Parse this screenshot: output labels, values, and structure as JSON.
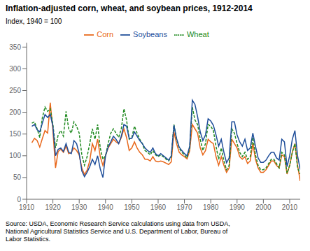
{
  "chart_data": {
    "type": "line",
    "title": "Inflation-adjusted corn, wheat, and soybean prices, 1912-2014",
    "ylabel": "Index, 1940 = 100",
    "annotations": [
      "Source: USDA, Economic Research Service calculations using data from USDA,\nNational Agricultural Statistics Service and U.S. Department of Labor, Bureau of\nLabor Statistics."
    ],
    "x": [
      1912,
      1913,
      1914,
      1915,
      1916,
      1917,
      1918,
      1919,
      1920,
      1921,
      1922,
      1923,
      1924,
      1925,
      1926,
      1927,
      1928,
      1929,
      1930,
      1931,
      1932,
      1933,
      1934,
      1935,
      1936,
      1937,
      1938,
      1939,
      1940,
      1941,
      1942,
      1943,
      1944,
      1945,
      1946,
      1947,
      1948,
      1949,
      1950,
      1951,
      1952,
      1953,
      1954,
      1955,
      1956,
      1957,
      1958,
      1959,
      1960,
      1961,
      1962,
      1963,
      1964,
      1965,
      1966,
      1967,
      1968,
      1969,
      1970,
      1971,
      1972,
      1973,
      1974,
      1975,
      1976,
      1977,
      1978,
      1979,
      1980,
      1981,
      1982,
      1983,
      1984,
      1985,
      1986,
      1987,
      1988,
      1989,
      1990,
      1991,
      1992,
      1993,
      1994,
      1995,
      1996,
      1997,
      1998,
      1999,
      2000,
      2001,
      2002,
      2003,
      2004,
      2005,
      2006,
      2007,
      2008,
      2009,
      2010,
      2011,
      2012,
      2013,
      2014
    ],
    "series": [
      {
        "name": "Corn",
        "color": "#E8671A",
        "line_style": "solid",
        "values": [
          130,
          140,
          135,
          120,
          140,
          158,
          152,
          222,
          158,
          72,
          110,
          115,
          108,
          122,
          105,
          108,
          118,
          112,
          102,
          72,
          57,
          67,
          88,
          128,
          112,
          138,
          98,
          78,
          100,
          118,
          128,
          138,
          132,
          128,
          142,
          162,
          142,
          112,
          118,
          132,
          118,
          108,
          102,
          92,
          92,
          88,
          98,
          88,
          86,
          88,
          86,
          83,
          80,
          86,
          155,
          128,
          108,
          102,
          98,
          93,
          112,
          172,
          162,
          152,
          118,
          102,
          112,
          138,
          132,
          128,
          98,
          78,
          98,
          78,
          62,
          72,
          138,
          128,
          118,
          98,
          92,
          98,
          82,
          88,
          128,
          92,
          72,
          62,
          62,
          68,
          78,
          88,
          88,
          78,
          72,
          102,
          98,
          58,
          78,
          108,
          128,
          78,
          42
        ]
      },
      {
        "name": "Wheat",
        "color": "#228B22",
        "line_style": "dashed",
        "values": [
          175,
          178,
          162,
          142,
          188,
          212,
          202,
          208,
          172,
          118,
          148,
          158,
          145,
          202,
          162,
          152,
          178,
          168,
          152,
          102,
          78,
          98,
          128,
          162,
          138,
          172,
          118,
          92,
          100,
          128,
          152,
          162,
          152,
          142,
          162,
          208,
          182,
          138,
          142,
          168,
          152,
          138,
          128,
          112,
          108,
          102,
          112,
          102,
          98,
          102,
          98,
          92,
          88,
          98,
          172,
          138,
          118,
          108,
          102,
          95,
          118,
          212,
          182,
          172,
          138,
          112,
          128,
          172,
          168,
          158,
          122,
          92,
          118,
          88,
          68,
          78,
          162,
          152,
          128,
          108,
          98,
          108,
          92,
          98,
          142,
          102,
          78,
          68,
          68,
          72,
          82,
          92,
          92,
          82,
          72,
          108,
          102,
          60,
          78,
          108,
          128,
          72,
          58
        ]
      },
      {
        "name": "Soybeans",
        "color": "#1F4E9A",
        "line_style": "solid",
        "values": [
          168,
          172,
          160,
          155,
          175,
          195,
          188,
          195,
          168,
          100,
          115,
          118,
          110,
          128,
          108,
          105,
          135,
          128,
          105,
          65,
          52,
          62,
          75,
          92,
          80,
          100,
          70,
          50,
          100,
          120,
          132,
          145,
          138,
          128,
          145,
          172,
          168,
          140,
          140,
          155,
          145,
          135,
          128,
          118,
          112,
          108,
          118,
          105,
          100,
          105,
          100,
          95,
          90,
          100,
          170,
          140,
          120,
          112,
          105,
          100,
          122,
          228,
          218,
          190,
          155,
          135,
          148,
          185,
          180,
          170,
          148,
          122,
          138,
          108,
          84,
          95,
          178,
          178,
          148,
          132,
          122,
          138,
          112,
          118,
          152,
          122,
          95,
          85,
          85,
          90,
          100,
          108,
          108,
          95,
          90,
          138,
          132,
          75,
          100,
          138,
          158,
          100,
          68
        ]
      }
    ],
    "xlim": [
      1910,
      2014
    ],
    "xticks": [
      1910,
      1920,
      1930,
      1940,
      1950,
      1960,
      1970,
      1980,
      1990,
      2000,
      2010
    ],
    "ylim": [
      0,
      360
    ],
    "yticks": [
      0,
      50,
      100,
      150,
      200,
      250,
      300,
      350
    ],
    "grid": false,
    "legend": "upper center"
  }
}
